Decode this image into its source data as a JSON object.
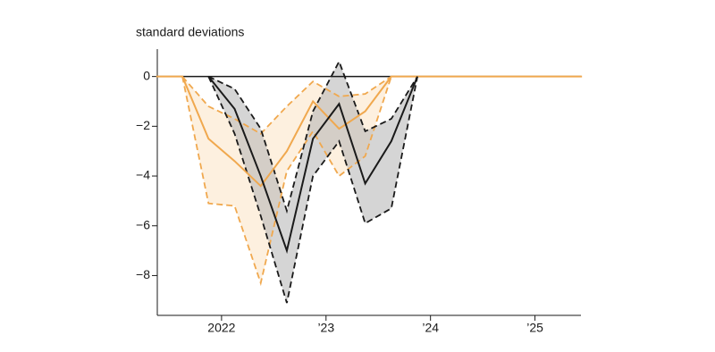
{
  "chart_data": {
    "type": "line",
    "y_label": "standard deviations",
    "x": [
      2021.375,
      2021.625,
      2021.875,
      2022.125,
      2022.375,
      2022.625,
      2022.875,
      2023.125,
      2023.375,
      2023.625,
      2023.875,
      2025.45
    ],
    "series": [
      {
        "color": "#f0a84e",
        "fill": "#fbe3c4",
        "values": [
          0,
          0,
          -2.5,
          -3.4,
          -4.4,
          -3.0,
          -1.0,
          -2.1,
          -1.4,
          0,
          0,
          0
        ],
        "upper": [
          null,
          0,
          -1.2,
          -1.7,
          -2.3,
          -1.2,
          -0.2,
          -0.8,
          -0.7,
          0,
          null,
          null
        ],
        "lower": [
          null,
          0,
          -5.1,
          -5.2,
          -8.3,
          -3.8,
          -2.2,
          -4.0,
          -3.2,
          0,
          null,
          null
        ]
      },
      {
        "color": "#1a1a1a",
        "fill": "#b3b3b3",
        "values": [
          null,
          null,
          0,
          -1.3,
          -4.0,
          -7.0,
          -2.5,
          -1.1,
          -4.3,
          -2.6,
          0,
          null
        ],
        "upper": [
          null,
          null,
          0,
          -0.5,
          -2.1,
          -5.4,
          -1.4,
          0.6,
          -2.2,
          -1.7,
          0,
          null
        ],
        "lower": [
          null,
          null,
          0,
          -2.3,
          -5.6,
          -9.1,
          -4.0,
          -2.6,
          -5.9,
          -5.3,
          0,
          null
        ]
      }
    ],
    "xlim": [
      2021.385,
      2025.44
    ],
    "xticks": [
      {
        "value": 2022,
        "label": "2022"
      },
      {
        "value": 2023,
        "label": "’23"
      },
      {
        "value": 2024,
        "label": "’24"
      },
      {
        "value": 2025,
        "label": "’25"
      }
    ],
    "ylim": [
      -9.6,
      1.1
    ],
    "yticks": [
      {
        "value": -8,
        "label": "−8"
      },
      {
        "value": -6,
        "label": "−6"
      },
      {
        "value": -4,
        "label": "−4"
      },
      {
        "value": -2,
        "label": "−2"
      },
      0
    ],
    "grid": false
  }
}
